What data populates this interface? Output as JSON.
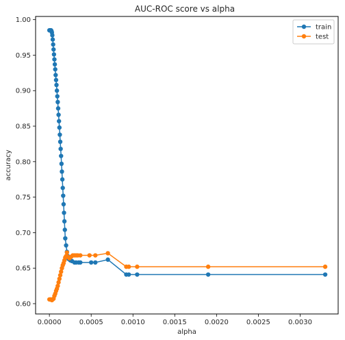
{
  "chart_data": {
    "type": "line",
    "title": "AUC-ROC score vs alpha",
    "xlabel": "alpha",
    "ylabel": "accuracy",
    "xlim": [
      -0.000165,
      0.003455
    ],
    "ylim": [
      0.5855,
      1.0045
    ],
    "x_ticks": [
      0.0,
      0.0005,
      0.001,
      0.0015,
      0.002,
      0.0025,
      0.003
    ],
    "x_tick_labels": [
      "0.0000",
      "0.0005",
      "0.0010",
      "0.0015",
      "0.0020",
      "0.0025",
      "0.0030"
    ],
    "y_ticks": [
      0.6,
      0.65,
      0.7,
      0.75,
      0.8,
      0.85,
      0.9,
      0.95,
      1.0
    ],
    "y_tick_labels": [
      "0.60",
      "0.65",
      "0.70",
      "0.75",
      "0.80",
      "0.85",
      "0.90",
      "0.95",
      "1.00"
    ],
    "legend_position": "top-right",
    "grid": false,
    "series": [
      {
        "name": "train",
        "color": "#1f77b4",
        "marker": "circle",
        "points": [
          [
            0.0,
            0.985
          ],
          [
            5e-06,
            0.985
          ],
          [
            1e-05,
            0.985
          ],
          [
            1.5e-05,
            0.985
          ],
          [
            2e-05,
            0.985
          ],
          [
            2.5e-05,
            0.984
          ],
          [
            3e-05,
            0.982
          ],
          [
            3.5e-05,
            0.978
          ],
          [
            4e-05,
            0.972
          ],
          [
            4.5e-05,
            0.965
          ],
          [
            5e-05,
            0.958
          ],
          [
            5.5e-05,
            0.951
          ],
          [
            6e-05,
            0.944
          ],
          [
            6.5e-05,
            0.937
          ],
          [
            7e-05,
            0.93
          ],
          [
            7.5e-05,
            0.922
          ],
          [
            8e-05,
            0.915
          ],
          [
            8.5e-05,
            0.908
          ],
          [
            9e-05,
            0.9
          ],
          [
            9.5e-05,
            0.892
          ],
          [
            0.0001,
            0.884
          ],
          [
            0.000105,
            0.875
          ],
          [
            0.00011,
            0.866
          ],
          [
            0.000115,
            0.857
          ],
          [
            0.00012,
            0.848
          ],
          [
            0.000125,
            0.838
          ],
          [
            0.00013,
            0.828
          ],
          [
            0.000135,
            0.818
          ],
          [
            0.00014,
            0.808
          ],
          [
            0.000145,
            0.797
          ],
          [
            0.00015,
            0.786
          ],
          [
            0.000155,
            0.775
          ],
          [
            0.00016,
            0.763
          ],
          [
            0.000165,
            0.752
          ],
          [
            0.00017,
            0.74
          ],
          [
            0.000175,
            0.728
          ],
          [
            0.00018,
            0.716
          ],
          [
            0.000185,
            0.704
          ],
          [
            0.00019,
            0.692
          ],
          [
            0.0002,
            0.682
          ],
          [
            0.00021,
            0.673
          ],
          [
            0.00022,
            0.667
          ],
          [
            0.00023,
            0.663
          ],
          [
            0.00025,
            0.661
          ],
          [
            0.00027,
            0.66
          ],
          [
            0.0003,
            0.658
          ],
          [
            0.00032,
            0.658
          ],
          [
            0.00035,
            0.658
          ],
          [
            0.00037,
            0.658
          ],
          [
            0.0005,
            0.658
          ],
          [
            0.00055,
            0.658
          ],
          [
            0.0007,
            0.662
          ],
          [
            0.00092,
            0.641
          ],
          [
            0.00095,
            0.641
          ],
          [
            0.00105,
            0.641
          ],
          [
            0.0019,
            0.641
          ],
          [
            0.0033,
            0.641
          ]
        ]
      },
      {
        "name": "test",
        "color": "#ff7f0e",
        "marker": "circle",
        "points": [
          [
            0.0,
            0.606
          ],
          [
            1e-05,
            0.606
          ],
          [
            2e-05,
            0.606
          ],
          [
            3e-05,
            0.605
          ],
          [
            4e-05,
            0.606
          ],
          [
            5e-05,
            0.607
          ],
          [
            6e-05,
            0.611
          ],
          [
            7e-05,
            0.614
          ],
          [
            8e-05,
            0.618
          ],
          [
            9e-05,
            0.621
          ],
          [
            0.0001,
            0.625
          ],
          [
            0.00011,
            0.63
          ],
          [
            0.00012,
            0.635
          ],
          [
            0.00013,
            0.64
          ],
          [
            0.00014,
            0.645
          ],
          [
            0.00015,
            0.65
          ],
          [
            0.00016,
            0.654
          ],
          [
            0.00017,
            0.657
          ],
          [
            0.00018,
            0.661
          ],
          [
            0.00019,
            0.665
          ],
          [
            0.0002,
            0.667
          ],
          [
            0.00021,
            0.672
          ],
          [
            0.00022,
            0.666
          ],
          [
            0.00024,
            0.664
          ],
          [
            0.00026,
            0.666
          ],
          [
            0.00028,
            0.668
          ],
          [
            0.0003,
            0.668
          ],
          [
            0.00032,
            0.668
          ],
          [
            0.00034,
            0.668
          ],
          [
            0.00037,
            0.668
          ],
          [
            0.00048,
            0.668
          ],
          [
            0.00055,
            0.668
          ],
          [
            0.0007,
            0.671
          ],
          [
            0.00092,
            0.652
          ],
          [
            0.00095,
            0.652
          ],
          [
            0.00105,
            0.652
          ],
          [
            0.0019,
            0.652
          ],
          [
            0.0033,
            0.652
          ]
        ]
      }
    ]
  }
}
